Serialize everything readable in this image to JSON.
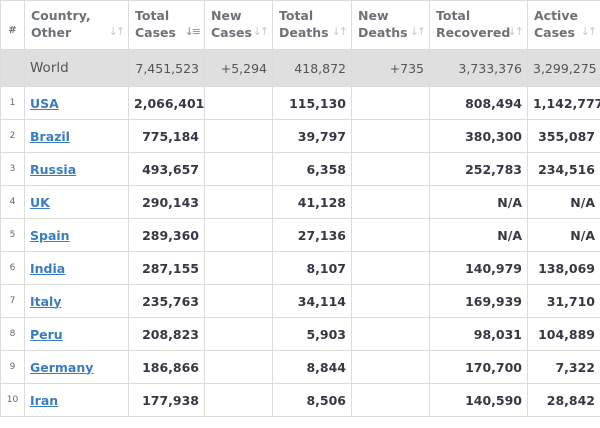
{
  "table": {
    "headers": [
      {
        "key": "rank",
        "label": "#"
      },
      {
        "key": "country",
        "line1": "Country,",
        "line2": "Other"
      },
      {
        "key": "total_cases",
        "line1": "Total",
        "line2": "Cases",
        "sorted": true
      },
      {
        "key": "new_cases",
        "line1": "New",
        "line2": "Cases"
      },
      {
        "key": "total_deaths",
        "line1": "Total",
        "line2": "Deaths"
      },
      {
        "key": "new_deaths",
        "line1": "New",
        "line2": "Deaths"
      },
      {
        "key": "total_recovered",
        "line1": "Total",
        "line2": "Recovered"
      },
      {
        "key": "active_cases",
        "line1": "Active",
        "line2": "Cases"
      }
    ],
    "world": {
      "country": "World",
      "total_cases": "7,451,523",
      "new_cases": "+5,294",
      "total_deaths": "418,872",
      "new_deaths": "+735",
      "total_recovered": "3,733,376",
      "active_cases": "3,299,275"
    },
    "rows": [
      {
        "rank": "1",
        "country": "USA",
        "total_cases": "2,066,401",
        "new_cases": "",
        "total_deaths": "115,130",
        "new_deaths": "",
        "total_recovered": "808,494",
        "active_cases": "1,142,777"
      },
      {
        "rank": "2",
        "country": "Brazil",
        "total_cases": "775,184",
        "new_cases": "",
        "total_deaths": "39,797",
        "new_deaths": "",
        "total_recovered": "380,300",
        "active_cases": "355,087"
      },
      {
        "rank": "3",
        "country": "Russia",
        "total_cases": "493,657",
        "new_cases": "",
        "total_deaths": "6,358",
        "new_deaths": "",
        "total_recovered": "252,783",
        "active_cases": "234,516"
      },
      {
        "rank": "4",
        "country": "UK",
        "total_cases": "290,143",
        "new_cases": "",
        "total_deaths": "41,128",
        "new_deaths": "",
        "total_recovered": "N/A",
        "active_cases": "N/A"
      },
      {
        "rank": "5",
        "country": "Spain",
        "total_cases": "289,360",
        "new_cases": "",
        "total_deaths": "27,136",
        "new_deaths": "",
        "total_recovered": "N/A",
        "active_cases": "N/A"
      },
      {
        "rank": "6",
        "country": "India",
        "total_cases": "287,155",
        "new_cases": "",
        "total_deaths": "8,107",
        "new_deaths": "",
        "total_recovered": "140,979",
        "active_cases": "138,069"
      },
      {
        "rank": "7",
        "country": "Italy",
        "total_cases": "235,763",
        "new_cases": "",
        "total_deaths": "34,114",
        "new_deaths": "",
        "total_recovered": "169,939",
        "active_cases": "31,710"
      },
      {
        "rank": "8",
        "country": "Peru",
        "total_cases": "208,823",
        "new_cases": "",
        "total_deaths": "5,903",
        "new_deaths": "",
        "total_recovered": "98,031",
        "active_cases": "104,889"
      },
      {
        "rank": "9",
        "country": "Germany",
        "total_cases": "186,866",
        "new_cases": "",
        "total_deaths": "8,844",
        "new_deaths": "",
        "total_recovered": "170,700",
        "active_cases": "7,322"
      },
      {
        "rank": "10",
        "country": "Iran",
        "total_cases": "177,938",
        "new_cases": "",
        "total_deaths": "8,506",
        "new_deaths": "",
        "total_recovered": "140,590",
        "active_cases": "28,842"
      }
    ]
  },
  "icons": {
    "sort": "sort-arrows-icon",
    "sort_active": "sort-descending-icon"
  },
  "colors": {
    "link": "#3a7dbf",
    "world_row_bg": "#dfdfdf",
    "border": "#dcdcdc",
    "text": "#363945"
  }
}
